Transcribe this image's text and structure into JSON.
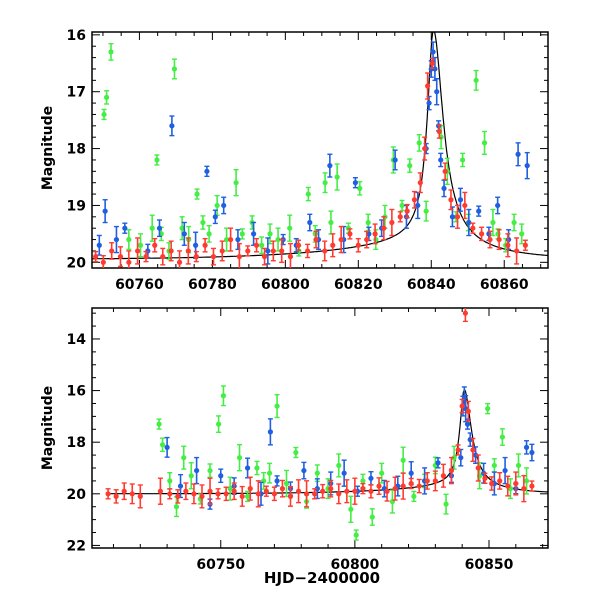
{
  "chart_data": [
    {
      "type": "scatter",
      "panel": "top",
      "ylabel": "Magnitude",
      "xlabel": "",
      "xlim": [
        60747,
        60872
      ],
      "ylim": [
        20.1,
        15.95
      ],
      "y_inverted": true,
      "xticks": [
        60760,
        60780,
        60800,
        60820,
        60840,
        60860
      ],
      "yticks": [
        16,
        17,
        18,
        19,
        20
      ],
      "model_curve_color": "#000000",
      "series": [
        {
          "color": "#44ee44",
          "x": [
            60750.3,
            60751.0,
            60752.2,
            60757.1,
            60760.3,
            60763.5,
            60764.8,
            60766.0,
            60768.1,
            60769.6,
            60771.7,
            60773.5,
            60775.8,
            60777.4,
            60779.1,
            60781.3,
            60783.9,
            60786.5,
            60788.2,
            60790.9,
            60793.5,
            60795.8,
            60798.0,
            60801.2,
            60803.7,
            60806.3,
            60808.2,
            60810.9,
            60812.5,
            60814.2,
            60817.3,
            60820.4,
            60822.7,
            60824.8,
            60827.3,
            60829.6,
            60832.0,
            60834.1,
            60836.7,
            60838.6,
            60842.7,
            60844.4,
            60846.8,
            60848.6,
            60850.2,
            60852.3,
            60854.6,
            60856.9,
            60858.3,
            60860.4,
            60862.7,
            60864.8
          ],
          "y": [
            17.4,
            17.1,
            16.3,
            19.6,
            19.7,
            19.4,
            18.2,
            19.5,
            19.8,
            16.6,
            19.4,
            19.6,
            18.8,
            19.3,
            19.5,
            19.0,
            19.6,
            18.6,
            19.5,
            19.3,
            19.7,
            19.5,
            19.6,
            19.4,
            19.8,
            18.8,
            19.5,
            18.6,
            19.3,
            18.5,
            19.4,
            18.7,
            19.3,
            19.6,
            19.2,
            18.2,
            19.0,
            18.3,
            17.9,
            19.1,
            17.8,
            18.4,
            19.2,
            18.2,
            19.3,
            16.8,
            17.9,
            19.3,
            19.5,
            19.7,
            19.3,
            19.5
          ]
        },
        {
          "color": "#1f5fe0",
          "x": [
            60749.0,
            60750.6,
            60753.7,
            60756.0,
            60762.3,
            60765.5,
            60768.9,
            60772.3,
            60775.4,
            60778.5,
            60780.8,
            60783.1,
            60787.0,
            60791.3,
            60795.2,
            60799.4,
            60803.0,
            60806.7,
            60809.1,
            60812.2,
            60816.0,
            60819.2,
            60822.9,
            60826.4,
            60830.1,
            60833.2,
            60836.3,
            60838.6,
            60839.4,
            60840.0,
            60840.5,
            60841.0,
            60841.5,
            60842.0,
            60842.6,
            60843.5,
            60845.8,
            60848.0,
            60850.3,
            60853.0,
            60855.8,
            60858.2,
            60861.2,
            60863.8,
            60866.3
          ],
          "y": [
            19.7,
            19.1,
            19.6,
            19.4,
            19.8,
            19.4,
            17.6,
            19.5,
            19.7,
            18.4,
            19.2,
            19.0,
            19.6,
            19.5,
            19.8,
            19.6,
            19.7,
            19.3,
            19.6,
            18.3,
            19.6,
            18.6,
            19.5,
            19.4,
            18.2,
            19.2,
            19.0,
            18.0,
            17.2,
            16.6,
            16.3,
            16.6,
            17.0,
            17.6,
            18.2,
            18.7,
            19.2,
            18.9,
            19.3,
            19.1,
            19.5,
            19.0,
            19.6,
            18.1,
            18.3
          ]
        },
        {
          "color": "#ff3b30",
          "x": [
            60748.0,
            60750.1,
            60752.4,
            60754.8,
            60757.1,
            60759.5,
            60761.8,
            60764.2,
            60766.4,
            60768.7,
            60771.0,
            60773.4,
            60775.6,
            60778.0,
            60780.3,
            60782.7,
            60785.0,
            60787.4,
            60789.7,
            60792.1,
            60794.3,
            60796.7,
            60799.0,
            60801.4,
            60803.6,
            60806.1,
            60808.4,
            60810.8,
            60813.0,
            60815.3,
            60817.7,
            60820.0,
            60822.3,
            60824.6,
            60827.0,
            60829.2,
            60831.5,
            60833.4,
            60835.4,
            60837.0,
            60838.2,
            60839.0,
            60840.3,
            60842.2,
            60843.8,
            60845.4,
            60847.2,
            60849.2,
            60851.4,
            60853.8,
            60856.1,
            60858.6,
            60861.0,
            60863.4,
            60865.8
          ],
          "y": [
            19.9,
            20.0,
            19.8,
            19.9,
            20.0,
            19.8,
            19.9,
            19.7,
            19.9,
            19.8,
            20.0,
            19.8,
            19.9,
            19.7,
            19.9,
            19.8,
            19.6,
            19.9,
            19.8,
            19.7,
            19.9,
            19.8,
            19.8,
            19.9,
            19.7,
            19.8,
            19.6,
            19.8,
            19.7,
            19.6,
            19.5,
            19.7,
            19.6,
            19.5,
            19.4,
            19.3,
            19.2,
            19.1,
            18.9,
            18.6,
            18.0,
            16.9,
            16.5,
            17.7,
            18.4,
            18.9,
            19.2,
            19.0,
            19.4,
            19.5,
            19.6,
            19.6,
            19.7,
            19.8,
            19.7
          ]
        }
      ]
    },
    {
      "type": "scatter",
      "panel": "bottom",
      "ylabel": "Magnitude",
      "xlabel": "HJD−2400000",
      "xlim": [
        60702,
        60872
      ],
      "ylim": [
        22.1,
        12.8
      ],
      "y_inverted": true,
      "xticks": [
        60750,
        60800,
        60850
      ],
      "yticks": [
        14,
        16,
        18,
        20,
        22
      ],
      "model_curve_color": "#000000",
      "series": [
        {
          "color": "#44ee44",
          "x": [
            60727.0,
            60728.3,
            60731.0,
            60733.5,
            60736.2,
            60739.0,
            60742.4,
            60746.0,
            60749.2,
            60751.0,
            60753.5,
            60757.0,
            60760.0,
            60763.5,
            60766.0,
            60768.2,
            60771.0,
            60774.5,
            60778.0,
            60782.0,
            60786.0,
            60790.0,
            60794.0,
            60798.5,
            60800.5,
            60803.0,
            60806.5,
            60810.0,
            60814.0,
            60818.0,
            60822.0,
            60826.0,
            60830.0,
            60834.0,
            60837.0,
            60846.5,
            60849.5,
            60852.0,
            60855.0,
            60858.0,
            60861.0,
            60864.0
          ],
          "y": [
            17.3,
            18.1,
            19.5,
            20.5,
            18.6,
            19.3,
            20.2,
            19.1,
            17.3,
            16.2,
            19.8,
            18.6,
            20.1,
            19.0,
            19.5,
            19.2,
            16.6,
            19.6,
            18.4,
            20.3,
            19.2,
            19.8,
            18.9,
            20.6,
            21.6,
            19.5,
            20.9,
            19.2,
            20.3,
            18.7,
            20.1,
            19.5,
            18.9,
            20.4,
            18.6,
            19.3,
            16.7,
            18.9,
            17.8,
            19.8,
            18.9,
            19.5
          ]
        },
        {
          "color": "#1f5fe0",
          "x": [
            60730.0,
            60735.0,
            60741.0,
            60746.0,
            60750.0,
            60755.0,
            60760.0,
            60765.0,
            60768.5,
            60771.0,
            60776.0,
            60781.0,
            60786.0,
            60791.0,
            60796.0,
            60801.0,
            60806.0,
            60811.0,
            60816.0,
            60821.0,
            60826.0,
            60831.0,
            60836.0,
            60839.5,
            60840.3,
            60840.8,
            60841.3,
            60842.0,
            60843.0,
            60845.0,
            60848.0,
            60852.0,
            60856.0,
            60860.0,
            60864.0,
            60866.0
          ],
          "y": [
            18.2,
            19.7,
            19.1,
            20.4,
            19.3,
            19.7,
            19.0,
            20.0,
            17.6,
            19.5,
            19.8,
            19.1,
            19.8,
            19.6,
            19.2,
            19.9,
            19.4,
            19.8,
            19.7,
            19.2,
            19.5,
            18.8,
            19.3,
            18.6,
            16.6,
            16.3,
            16.7,
            17.3,
            17.9,
            18.5,
            19.2,
            19.6,
            19.1,
            19.8,
            18.2,
            18.4
          ]
        },
        {
          "color": "#ff3b30",
          "x": [
            60708.0,
            60711.0,
            60714.0,
            60717.0,
            60720.0,
            60727.5,
            60731.0,
            60734.0,
            60737.0,
            60740.0,
            60743.0,
            60746.0,
            60749.0,
            60752.0,
            60755.0,
            60758.0,
            60761.0,
            60764.0,
            60767.0,
            60770.0,
            60773.0,
            60776.0,
            60779.0,
            60782.0,
            60785.0,
            60788.0,
            60791.0,
            60794.0,
            60797.0,
            60800.0,
            60803.0,
            60806.0,
            60809.0,
            60812.0,
            60815.0,
            60818.0,
            60821.0,
            60824.0,
            60827.0,
            60830.0,
            60833.0,
            60836.0,
            60838.5,
            60840.0,
            60841.2,
            60842.3,
            60844.0,
            60846.0,
            60848.5,
            60851.0,
            60854.0,
            60857.0,
            60860.0,
            60863.0,
            60866.0
          ],
          "y": [
            20.0,
            20.1,
            19.9,
            20.0,
            20.1,
            19.9,
            20.0,
            20.1,
            19.9,
            20.0,
            20.1,
            19.9,
            20.0,
            20.0,
            19.9,
            20.1,
            19.8,
            20.0,
            19.9,
            20.0,
            19.8,
            20.1,
            19.9,
            20.0,
            20.0,
            19.9,
            19.8,
            20.0,
            19.9,
            19.9,
            19.8,
            19.9,
            19.7,
            19.9,
            19.8,
            19.7,
            19.6,
            19.7,
            19.5,
            19.5,
            19.3,
            19.1,
            18.3,
            16.6,
            13.0,
            16.8,
            18.3,
            19.0,
            19.4,
            19.6,
            19.5,
            19.7,
            19.6,
            19.8,
            19.7
          ]
        }
      ]
    }
  ]
}
